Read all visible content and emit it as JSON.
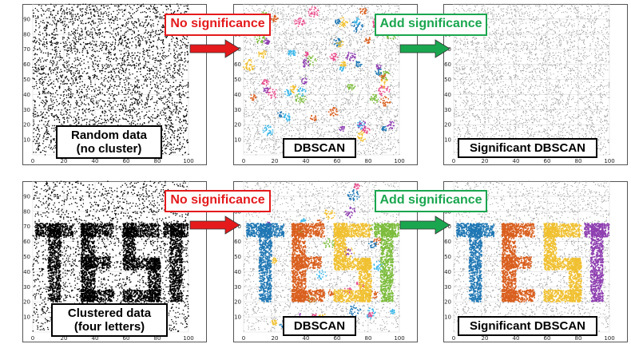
{
  "panels": [
    {
      "id": "p11",
      "label_lines": [
        "Random data",
        "(no cluster)"
      ],
      "style": "mono"
    },
    {
      "id": "p12",
      "label_lines": [
        "DBSCAN"
      ],
      "style": "dbscan"
    },
    {
      "id": "p13",
      "label_lines": [
        "Significant DBSCAN"
      ],
      "style": "noise"
    },
    {
      "id": "p21",
      "label_lines": [
        "Clustered data",
        "(four letters)"
      ],
      "style": "mono"
    },
    {
      "id": "p22",
      "label_lines": [
        "DBSCAN"
      ],
      "style": "dbscan"
    },
    {
      "id": "p23",
      "label_lines": [
        "Significant DBSCAN"
      ],
      "style": "noise"
    }
  ],
  "steps": {
    "no_significance": "No significance",
    "add_significance": "Add significance"
  },
  "letters": "TEST",
  "axis": {
    "x_ticks": [
      "0",
      "20",
      "40",
      "60",
      "80",
      "100"
    ],
    "y_ticks": [
      "10",
      "20",
      "30",
      "40",
      "50",
      "60",
      "70",
      "80",
      "90"
    ]
  },
  "colors": {
    "black": "#000000",
    "noise": "#9e9e9e",
    "red_arrow": "#e41a1c",
    "green_arrow": "#1aa64f",
    "letter_T1": "#1f77b4",
    "letter_E": "#d95f1e",
    "letter_S": "#f0c030",
    "letter_T2": "#8e3fb0",
    "letter_T2_dbscan": "#7cbc3c",
    "small_clusters": [
      "#3bb6e8",
      "#f0c030",
      "#8e3fb0",
      "#e84a8a",
      "#7cbc3c",
      "#d95f1e",
      "#1f77b4"
    ]
  }
}
